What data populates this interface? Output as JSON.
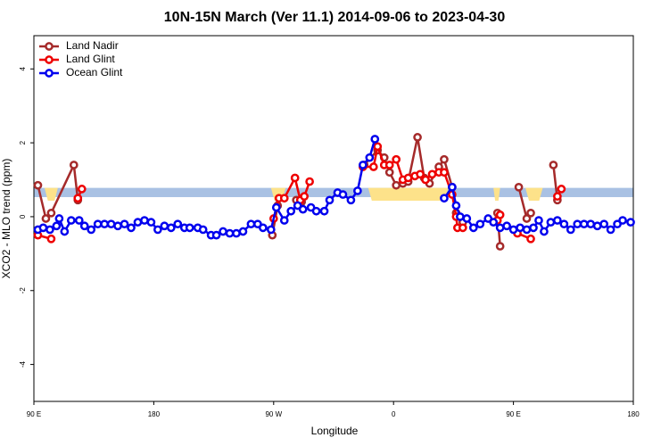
{
  "chart_data": {
    "type": "line",
    "title": "10N-15N March (Ver 11.1)   2014-09-06 to 2023-04-30",
    "xlabel": "Longitude",
    "ylabel": "XCO2 - MLO trend (ppm)",
    "xlim": [
      90,
      540
    ],
    "xticks": [
      {
        "value": 90,
        "label": "90 E"
      },
      180,
      {
        "value": 270,
        "label": "90 W"
      },
      {
        "value": 360,
        "label": "0"
      },
      {
        "value": 450,
        "label": "90 E"
      },
      {
        "value": 540,
        "label": "180"
      }
    ],
    "ylim": [
      -5,
      4.9
    ],
    "yticks": [
      -4,
      -2,
      0,
      2,
      4
    ],
    "legend": "top-left",
    "band": {
      "range": [
        0.53,
        0.78
      ],
      "color": "#a9c1e3"
    },
    "shaded": {
      "ranges": [
        [
          98,
          108
        ],
        [
          268,
          279
        ],
        [
          341,
          401
        ],
        [
          435,
          440
        ],
        [
          459,
          472
        ]
      ],
      "color": "#fde28a"
    },
    "series": [
      {
        "name": "Land Nadir",
        "color": "#a52a2a",
        "x": [
          93,
          99,
          103,
          120,
          123,
          null,
          269,
          273,
          null,
          287,
          291,
          null,
          338,
          348,
          353,
          357,
          362,
          367,
          371,
          378,
          383,
          387,
          394,
          398,
          404,
          407,
          412,
          null,
          438,
          440,
          null,
          454,
          460,
          463,
          null,
          480,
          483
        ],
        "values": [
          0.85,
          -0.05,
          0.1,
          1.4,
          0.45,
          null,
          -0.5,
          0.3,
          null,
          0.45,
          0.4,
          null,
          1.4,
          1.8,
          1.6,
          1.2,
          0.85,
          0.9,
          0.95,
          2.15,
          1.05,
          0.9,
          1.35,
          1.55,
          0.8,
          0.1,
          -0.15,
          null,
          0.1,
          -0.8,
          null,
          0.8,
          -0.05,
          0.1,
          null,
          1.4,
          0.45
        ]
      },
      {
        "name": "Land Glint",
        "color": "#ee0000",
        "x": [
          93,
          103,
          null,
          123,
          126,
          null,
          270,
          274,
          278,
          286,
          290,
          293,
          297,
          null,
          337,
          345,
          348,
          353,
          357,
          362,
          367,
          371,
          376,
          380,
          384,
          389,
          394,
          398,
          404,
          407,
          408,
          412,
          null,
          438,
          440,
          null,
          453,
          463,
          null,
          483,
          486
        ],
        "values": [
          -0.5,
          -0.6,
          null,
          0.5,
          0.75,
          null,
          -0.05,
          0.5,
          0.5,
          1.05,
          0.45,
          0.55,
          0.95,
          null,
          1.35,
          1.35,
          1.9,
          1.4,
          1.4,
          1.55,
          1.0,
          1.05,
          1.1,
          1.15,
          1.0,
          1.15,
          1.2,
          1.2,
          0.6,
          0.0,
          -0.3,
          -0.3,
          null,
          -0.1,
          0.05,
          null,
          -0.45,
          -0.6,
          null,
          0.55,
          0.75
        ]
      },
      {
        "name": "Ocean Glint",
        "color": "#0000ee",
        "x": [
          93,
          97,
          102,
          107,
          109,
          113,
          118,
          124,
          128,
          133,
          138,
          143,
          148,
          153,
          158,
          163,
          168,
          173,
          178,
          183,
          188,
          193,
          198,
          203,
          207,
          213,
          217,
          223,
          227,
          232,
          237,
          242,
          247,
          253,
          258,
          262,
          268,
          272,
          278,
          283,
          288,
          292,
          298,
          302,
          308,
          312,
          318,
          322,
          328,
          333,
          337,
          342,
          346,
          null,
          398,
          404,
          407,
          410,
          415,
          420,
          425,
          431,
          435,
          440,
          445,
          450,
          455,
          460,
          465,
          469,
          473,
          478,
          483,
          488,
          493,
          498,
          503,
          508,
          513,
          518,
          523,
          528,
          532,
          538
        ],
        "values": [
          -0.35,
          -0.3,
          -0.35,
          -0.25,
          -0.05,
          -0.4,
          -0.1,
          -0.1,
          -0.25,
          -0.35,
          -0.2,
          -0.2,
          -0.2,
          -0.25,
          -0.2,
          -0.3,
          -0.15,
          -0.1,
          -0.15,
          -0.35,
          -0.25,
          -0.3,
          -0.2,
          -0.3,
          -0.3,
          -0.3,
          -0.35,
          -0.5,
          -0.5,
          -0.4,
          -0.45,
          -0.45,
          -0.4,
          -0.2,
          -0.2,
          -0.3,
          -0.35,
          0.25,
          -0.1,
          0.15,
          0.3,
          0.2,
          0.25,
          0.15,
          0.15,
          0.45,
          0.65,
          0.6,
          0.45,
          0.7,
          1.4,
          1.6,
          2.1,
          null,
          0.5,
          0.8,
          0.3,
          0.0,
          -0.05,
          -0.3,
          -0.2,
          -0.05,
          -0.15,
          -0.3,
          -0.25,
          -0.35,
          -0.3,
          -0.35,
          -0.3,
          -0.1,
          -0.4,
          -0.15,
          -0.1,
          -0.2,
          -0.35,
          -0.2,
          -0.2,
          -0.2,
          -0.25,
          -0.2,
          -0.35,
          -0.2,
          -0.1,
          -0.15
        ]
      }
    ]
  }
}
